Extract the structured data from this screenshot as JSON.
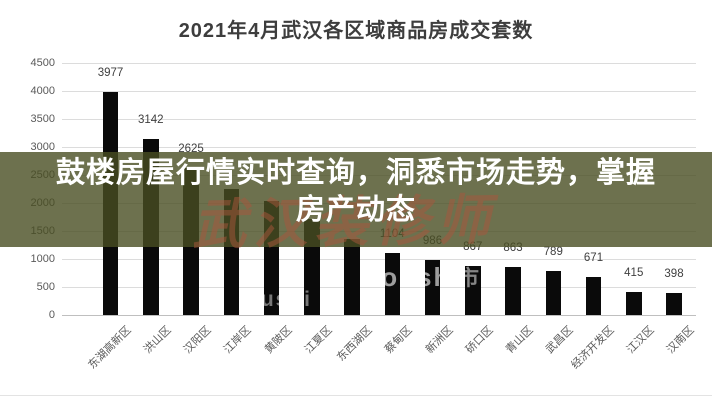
{
  "banner": {
    "line1": "鼓楼房屋行情实时查询，洞悉市场走势，掌握",
    "line2": "房产动态",
    "bg_color": "rgba(73,77,34,0.80)",
    "text_color": "#ffffff"
  },
  "watermarks": {
    "red_text": "武汉装修师",
    "red_color": "rgba(170,85,60,0.5)",
    "white_text_1": "loushi",
    "white_text_2": "oushi",
    "white_text_3": "市"
  },
  "chart_data": {
    "type": "bar",
    "title": "2021年4月武汉各区域商品房成交套数",
    "categories": [
      "东湖高新区",
      "洪山区",
      "汉阳区",
      "江岸区",
      "黄陂区",
      "江夏区",
      "东西湖区",
      "蔡甸区",
      "新洲区",
      "硚口区",
      "青山区",
      "武昌区",
      "经济开发区",
      "江汉区",
      "汉南区"
    ],
    "values": [
      3977,
      3142,
      2625,
      2250,
      2030,
      1720,
      1360,
      1104,
      986,
      867,
      863,
      789,
      671,
      415,
      398
    ],
    "value_labels": [
      "3977",
      "3142",
      "2625",
      "",
      "",
      "",
      "",
      "1104",
      "986",
      "867",
      "863",
      "789",
      "671",
      "415",
      "398"
    ],
    "yticks": [
      0,
      500,
      1000,
      1500,
      2000,
      2500,
      3000,
      3500,
      4000,
      4500
    ],
    "ylim": [
      0,
      4500
    ],
    "xlabel": "",
    "ylabel": "",
    "grid": true,
    "legend": "none",
    "bar_color": "#0a0a0a",
    "grid_color": "#dcdcdc",
    "tick_color": "#595959",
    "value_label_color": "#404040"
  }
}
